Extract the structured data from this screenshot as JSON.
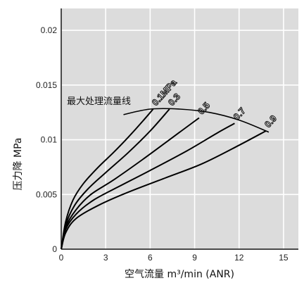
{
  "chart_data": {
    "type": "line",
    "xlabel": "空气流量 m³/min (ANR)",
    "ylabel": "压力降 MPa",
    "xlim": [
      0,
      16
    ],
    "ylim": [
      0,
      0.022
    ],
    "x_ticks": [
      "0",
      "3",
      "6",
      "9",
      "12",
      "15"
    ],
    "y_ticks": [
      "0",
      "0.005",
      "0.01",
      "0.015",
      "0.02"
    ],
    "grid": true,
    "series": [
      {
        "name": "0.1MPa",
        "x": [
          0,
          0.3,
          0.8,
          1.5,
          2.5,
          3.5,
          4.5,
          5.5,
          6.2
        ],
        "y": [
          0,
          0.0025,
          0.0045,
          0.006,
          0.0075,
          0.0088,
          0.0102,
          0.0117,
          0.0128
        ]
      },
      {
        "name": "0.3",
        "x": [
          0,
          0.3,
          0.9,
          1.8,
          3,
          4.5,
          6,
          7.3
        ],
        "y": [
          0,
          0.0022,
          0.004,
          0.0055,
          0.007,
          0.0088,
          0.0108,
          0.0128
        ]
      },
      {
        "name": "0.5",
        "x": [
          0,
          0.3,
          1,
          2,
          3.5,
          5.5,
          7.5,
          9.3
        ],
        "y": [
          0,
          0.002,
          0.0036,
          0.005,
          0.0063,
          0.0082,
          0.0102,
          0.012
        ]
      },
      {
        "name": "0.7",
        "x": [
          0,
          0.3,
          1,
          2.2,
          4,
          6,
          8.5,
          10.5,
          11.7
        ],
        "y": [
          0,
          0.0018,
          0.0032,
          0.0045,
          0.0058,
          0.0072,
          0.009,
          0.0106,
          0.0115
        ]
      },
      {
        "name": "0.9",
        "x": [
          0,
          0.3,
          1,
          2.5,
          4.5,
          7,
          9.5,
          12,
          13.8
        ],
        "y": [
          0,
          0.0015,
          0.0028,
          0.004,
          0.0052,
          0.0065,
          0.0078,
          0.0095,
          0.0108
        ]
      }
    ],
    "annotation": {
      "text": "最大处理流量线",
      "x": [
        4.2,
        6,
        8,
        10,
        12,
        14
      ],
      "y": [
        0.0123,
        0.0128,
        0.0128,
        0.0125,
        0.0118,
        0.0107
      ]
    }
  },
  "colors": {
    "plot_background": "#dcdcdc",
    "grid": "#ffffff",
    "frame": "#111111",
    "curve": "#000000"
  }
}
